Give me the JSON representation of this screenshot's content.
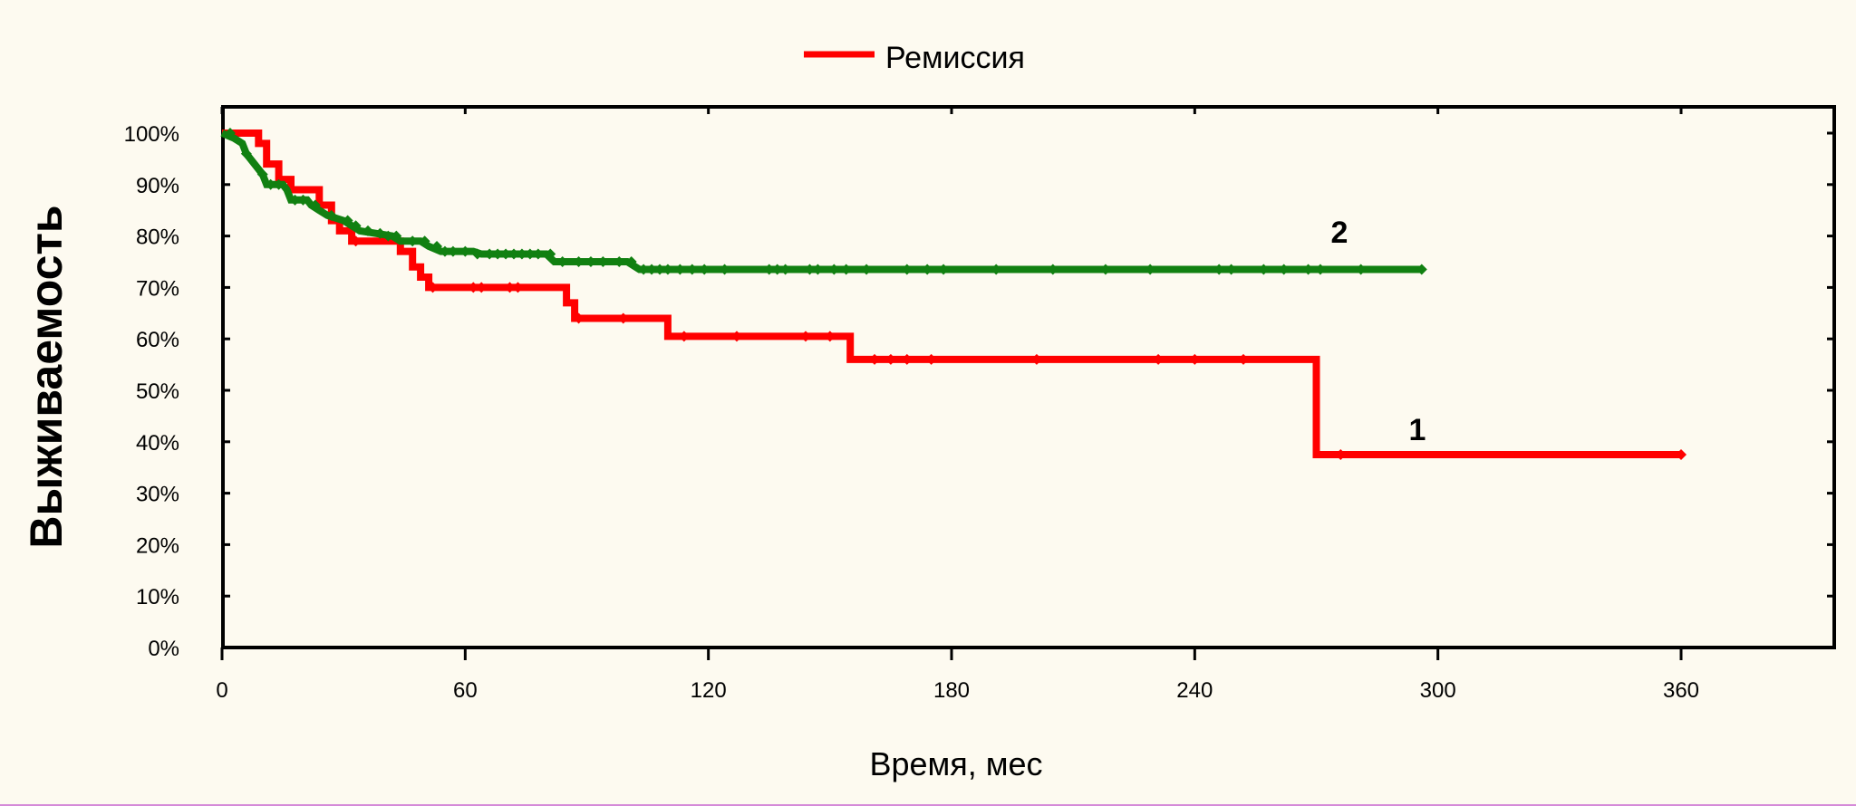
{
  "chart_data": {
    "type": "line",
    "title": "",
    "xlabel": "Время, мес",
    "ylabel": "Выживаемость",
    "xlim": [
      0,
      400
    ],
    "ylim": [
      0,
      100
    ],
    "x_ticks": [
      "0",
      "60",
      "120",
      "180",
      "240",
      "300",
      "360"
    ],
    "y_ticks": [
      "0%",
      "10%",
      "20%",
      "30%",
      "40%",
      "50%",
      "60%",
      "70%",
      "80%",
      "90%",
      "100%"
    ],
    "legend": {
      "label": "Ремиссия",
      "color": "#ff0000",
      "placement": "top-center"
    },
    "series": [
      {
        "label": "1",
        "color": "#ff0000",
        "step": [
          [
            0,
            100
          ],
          [
            9,
            100
          ],
          [
            9,
            98
          ],
          [
            11,
            98
          ],
          [
            11,
            94
          ],
          [
            14,
            94
          ],
          [
            14,
            91
          ],
          [
            17,
            91
          ],
          [
            17,
            89
          ],
          [
            24,
            89
          ],
          [
            24,
            86
          ],
          [
            27,
            86
          ],
          [
            27,
            83
          ],
          [
            29,
            83
          ],
          [
            29,
            81
          ],
          [
            32,
            81
          ],
          [
            32,
            79
          ],
          [
            44,
            79
          ],
          [
            44,
            77
          ],
          [
            47,
            77
          ],
          [
            47,
            74
          ],
          [
            49,
            74
          ],
          [
            49,
            72
          ],
          [
            51,
            72
          ],
          [
            51,
            70
          ],
          [
            85,
            70
          ],
          [
            85,
            67
          ],
          [
            87,
            67
          ],
          [
            87,
            64
          ],
          [
            110,
            64
          ],
          [
            110,
            60.5
          ],
          [
            155,
            60.5
          ],
          [
            155,
            56
          ],
          [
            270,
            56
          ],
          [
            270,
            37.5
          ],
          [
            360,
            37.5
          ]
        ],
        "censored": [
          [
            33,
            79
          ],
          [
            52,
            70
          ],
          [
            62,
            70
          ],
          [
            64,
            70
          ],
          [
            71,
            70
          ],
          [
            73,
            70
          ],
          [
            88,
            64
          ],
          [
            99,
            64
          ],
          [
            114,
            60.5
          ],
          [
            127,
            60.5
          ],
          [
            144,
            60.5
          ],
          [
            150,
            60.5
          ],
          [
            161,
            56
          ],
          [
            165,
            56
          ],
          [
            169,
            56
          ],
          [
            175,
            56
          ],
          [
            201,
            56
          ],
          [
            231,
            56
          ],
          [
            240,
            56
          ],
          [
            252,
            56
          ],
          [
            276,
            37.5
          ],
          [
            360,
            37.5
          ]
        ]
      },
      {
        "label": "2",
        "color": "#118011",
        "step": [
          [
            0,
            100
          ],
          [
            3,
            99
          ],
          [
            5,
            98
          ],
          [
            6,
            96
          ],
          [
            8,
            94
          ],
          [
            10,
            92
          ],
          [
            11,
            90
          ],
          [
            15,
            90
          ],
          [
            16,
            89
          ],
          [
            17,
            87
          ],
          [
            21,
            87
          ],
          [
            22,
            86
          ],
          [
            24,
            85
          ],
          [
            26,
            84
          ],
          [
            30,
            83
          ],
          [
            32,
            82
          ],
          [
            34,
            81
          ],
          [
            42,
            80
          ],
          [
            44,
            79
          ],
          [
            49,
            79
          ],
          [
            51,
            78
          ],
          [
            54,
            77
          ],
          [
            62,
            77
          ],
          [
            64,
            76.5
          ],
          [
            80,
            76.5
          ],
          [
            82,
            75
          ],
          [
            100,
            75
          ],
          [
            103,
            73.5
          ],
          [
            296,
            73.5
          ]
        ],
        "censored": [
          [
            2,
            100
          ],
          [
            6,
            96
          ],
          [
            10,
            92
          ],
          [
            12,
            90
          ],
          [
            14,
            90
          ],
          [
            18,
            87
          ],
          [
            20,
            87
          ],
          [
            23,
            86
          ],
          [
            27,
            84
          ],
          [
            31,
            83
          ],
          [
            33,
            82
          ],
          [
            36,
            81
          ],
          [
            39,
            80.5
          ],
          [
            41,
            80
          ],
          [
            43,
            80
          ],
          [
            47,
            79
          ],
          [
            50,
            79
          ],
          [
            53,
            78
          ],
          [
            55,
            77
          ],
          [
            57,
            77
          ],
          [
            60,
            77
          ],
          [
            63,
            76.5
          ],
          [
            66,
            76.5
          ],
          [
            68,
            76.5
          ],
          [
            70,
            76.5
          ],
          [
            72,
            76.5
          ],
          [
            74,
            76.5
          ],
          [
            76,
            76.5
          ],
          [
            78,
            76.5
          ],
          [
            81,
            76.5
          ],
          [
            84,
            75
          ],
          [
            88,
            75
          ],
          [
            91,
            75
          ],
          [
            94,
            75
          ],
          [
            98,
            75
          ],
          [
            101,
            75
          ],
          [
            104,
            73.5
          ],
          [
            106,
            73.5
          ],
          [
            108,
            73.5
          ],
          [
            110,
            73.5
          ],
          [
            113,
            73.5
          ],
          [
            116,
            73.5
          ],
          [
            119,
            73.5
          ],
          [
            124,
            73.5
          ],
          [
            135,
            73.5
          ],
          [
            137,
            73.5
          ],
          [
            139,
            73.5
          ],
          [
            145,
            73.5
          ],
          [
            147,
            73.5
          ],
          [
            151,
            73.5
          ],
          [
            154,
            73.5
          ],
          [
            159,
            73.5
          ],
          [
            169,
            73.5
          ],
          [
            174,
            73.5
          ],
          [
            178,
            73.5
          ],
          [
            191,
            73.5
          ],
          [
            205,
            73.5
          ],
          [
            218,
            73.5
          ],
          [
            229,
            73.5
          ],
          [
            246,
            73.5
          ],
          [
            249,
            73.5
          ],
          [
            257,
            73.5
          ],
          [
            262,
            73.5
          ],
          [
            268,
            73.5
          ],
          [
            271,
            73.5
          ],
          [
            281,
            73.5
          ],
          [
            296,
            73.5
          ]
        ]
      }
    ]
  }
}
